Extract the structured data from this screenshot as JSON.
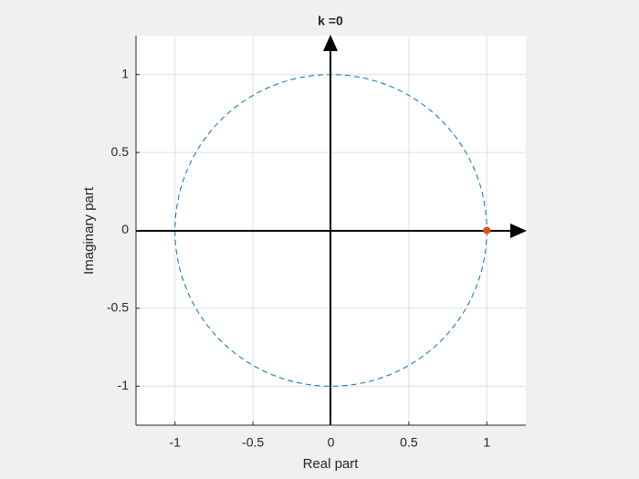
{
  "chart_data": {
    "type": "scatter",
    "title": "k =0",
    "x_label": "Real part",
    "y_label": "Imaginary part",
    "x": [
      1
    ],
    "values": [
      0
    ],
    "color": "#d95319",
    "unit_circle": {
      "radius": 1,
      "color": "#0072bd"
    },
    "xlim": [
      -1.25,
      1.25
    ],
    "ylim": [
      -1.25,
      1.25
    ],
    "xticks": [
      -1,
      -0.5,
      0,
      0.5,
      1
    ],
    "yticks": [
      -1,
      -0.5,
      0,
      0.5,
      1
    ],
    "grid": true
  }
}
